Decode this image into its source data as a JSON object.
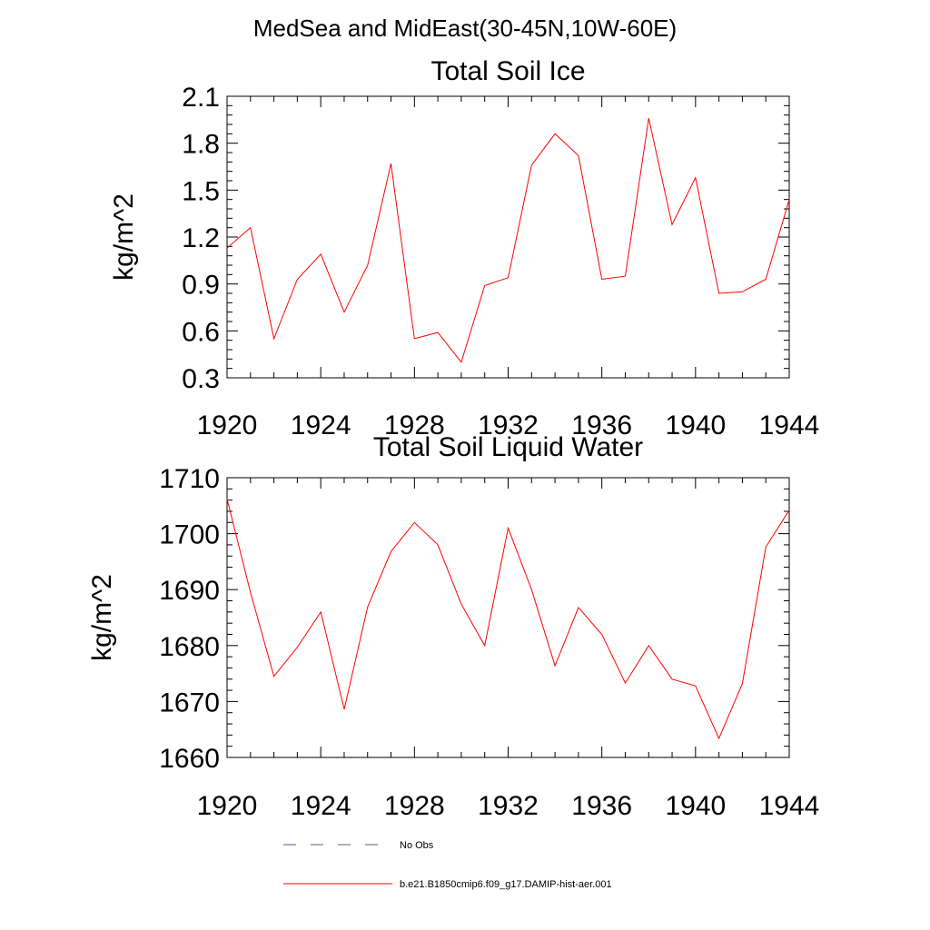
{
  "title": "MedSea and MidEast(30-45N,10W-60E)",
  "colors": {
    "series": "#ff0000",
    "no_obs": "#5a5a8a",
    "axis": "#000000"
  },
  "legend": [
    {
      "label": "No Obs",
      "style": "dashed"
    },
    {
      "label": "b.e21.B1850cmip6.f09_g17.DAMIP-hist-aer.001",
      "style": "solid"
    }
  ],
  "chart_data": [
    {
      "type": "line",
      "title": "Total Soil Ice",
      "xlabel": "",
      "ylabel": "kg/m^2",
      "xlim": [
        1920,
        1944
      ],
      "ylim": [
        0.3,
        2.1
      ],
      "xticks": [
        "1920",
        "1924",
        "1928",
        "1932",
        "1936",
        "1940",
        "1944"
      ],
      "yticks": [
        "0.3",
        "0.6",
        "0.9",
        "1.2",
        "1.5",
        "1.8",
        "2.1"
      ],
      "grid": false,
      "x": [
        1920,
        1921,
        1922,
        1923,
        1924,
        1925,
        1926,
        1927,
        1928,
        1929,
        1930,
        1931,
        1932,
        1933,
        1934,
        1935,
        1936,
        1937,
        1938,
        1939,
        1940,
        1941,
        1942,
        1943,
        1944
      ],
      "series": [
        {
          "name": "b.e21.B1850cmip6.f09_g17.DAMIP-hist-aer.001",
          "values": [
            1.13,
            1.26,
            0.55,
            0.93,
            1.09,
            0.72,
            1.02,
            1.67,
            0.55,
            0.59,
            0.4,
            0.89,
            0.94,
            1.66,
            1.86,
            1.72,
            0.93,
            0.95,
            1.96,
            1.28,
            1.58,
            0.84,
            0.85,
            0.93,
            1.44
          ]
        }
      ]
    },
    {
      "type": "line",
      "title": "Total Soil Liquid Water",
      "xlabel": "",
      "ylabel": "kg/m^2",
      "xlim": [
        1920,
        1944
      ],
      "ylim": [
        1660,
        1710
      ],
      "xticks": [
        "1920",
        "1924",
        "1928",
        "1932",
        "1936",
        "1940",
        "1944"
      ],
      "yticks": [
        "1660",
        "1670",
        "1680",
        "1690",
        "1700",
        "1710"
      ],
      "grid": false,
      "x": [
        1920,
        1921,
        1922,
        1923,
        1924,
        1925,
        1926,
        1927,
        1928,
        1929,
        1930,
        1931,
        1932,
        1933,
        1934,
        1935,
        1936,
        1937,
        1938,
        1939,
        1940,
        1941,
        1942,
        1943,
        1944
      ],
      "series": [
        {
          "name": "b.e21.B1850cmip6.f09_g17.DAMIP-hist-aer.001",
          "values": [
            1706.2,
            1689.5,
            1674.5,
            1679.7,
            1686.0,
            1668.6,
            1686.9,
            1696.8,
            1702.0,
            1698.0,
            1687.4,
            1680.0,
            1701.0,
            1690.0,
            1676.4,
            1686.8,
            1682.0,
            1673.3,
            1680.0,
            1674.0,
            1672.8,
            1663.4,
            1673.2,
            1697.6,
            1704.2
          ]
        }
      ]
    }
  ]
}
